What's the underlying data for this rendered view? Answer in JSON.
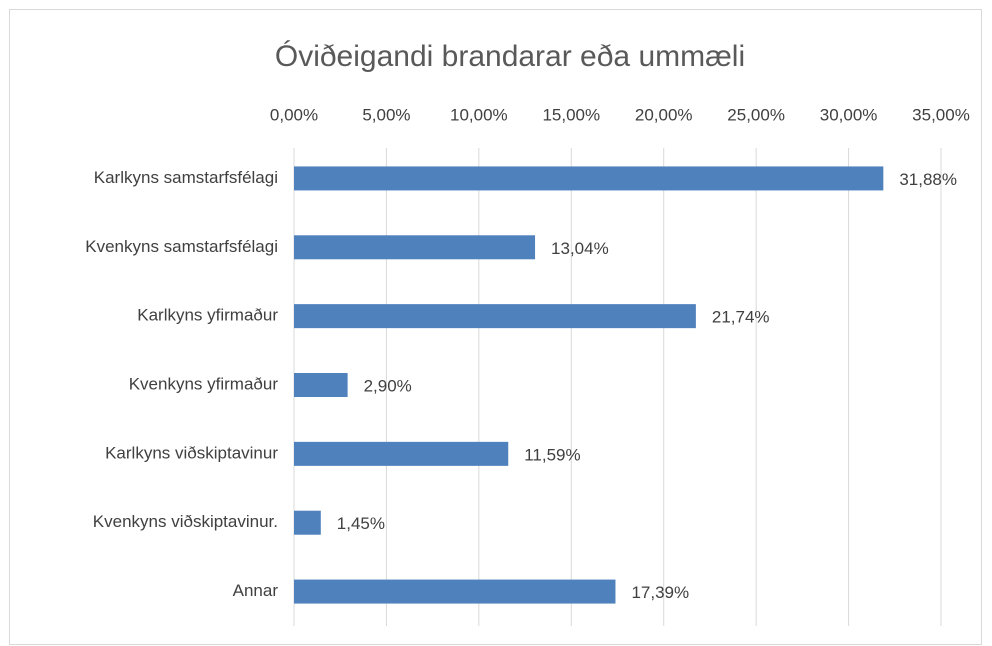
{
  "chart_data": {
    "type": "bar",
    "orientation": "horizontal",
    "title": "Óviðeigandi brandarar eða ummæli",
    "categories": [
      "Karlkyns samstarfsfélagi",
      "Kvenkyns samstarfsfélagi",
      "Karlkyns yfirmaður",
      "Kvenkyns yfirmaður",
      "Karlkyns viðskiptavinur",
      "Kvenkyns viðskiptavinur.",
      "Annar"
    ],
    "values": [
      31.88,
      13.04,
      21.74,
      2.9,
      11.59,
      1.45,
      17.39
    ],
    "value_labels": [
      "31,88%",
      "13,04%",
      "21,74%",
      "2,90%",
      "11,59%",
      "1,45%",
      "17,39%"
    ],
    "color": "#4f81bd",
    "xlim": [
      0,
      35
    ],
    "xticks": [
      {
        "value": 0,
        "label": "0,00%"
      },
      {
        "value": 5,
        "label": "5,00%"
      },
      {
        "value": 10,
        "label": "10,00%"
      },
      {
        "value": 15,
        "label": "15,00%"
      },
      {
        "value": 20,
        "label": "20,00%"
      },
      {
        "value": 25,
        "label": "25,00%"
      },
      {
        "value": 30,
        "label": "30,00%"
      },
      {
        "value": 35,
        "label": "35,00%"
      }
    ],
    "grid": true
  }
}
